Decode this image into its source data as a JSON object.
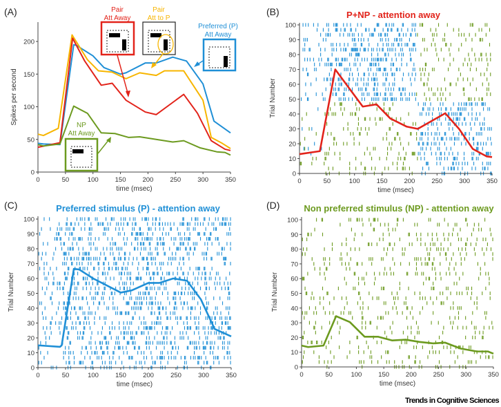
{
  "footer": "Trends in Cognitive Sciences",
  "colors": {
    "red": "#e2231a",
    "yellow": "#f7b500",
    "blue": "#1f8fd6",
    "green": "#6c9a1f",
    "black": "#222222"
  },
  "chart_data": [
    {
      "panel": "(A)",
      "type": "line",
      "xlabel": "time (msec)",
      "ylabel": "Spikes per second",
      "xlim": [
        0,
        350
      ],
      "ylim": [
        0,
        230
      ],
      "xticks": [
        "0",
        "50",
        "100",
        "150",
        "200",
        "250",
        "300",
        "350"
      ],
      "yticks": [
        "0",
        "50",
        "100",
        "150",
        "200"
      ],
      "annotations": {
        "pair_away": [
          "Pair",
          "Att Away"
        ],
        "pair_att": [
          "Pair",
          "Att to P"
        ],
        "pref_away": [
          "Preferred (P)",
          "Att Away"
        ],
        "np_away": [
          "NP",
          "Att Away"
        ]
      },
      "series": [
        {
          "name": "Preferred (P) Att Away",
          "color": "blue",
          "points": [
            [
              0,
              44
            ],
            [
              10,
              43
            ],
            [
              40,
              42
            ],
            [
              65,
              195
            ],
            [
              70,
              194
            ],
            [
              100,
              178
            ],
            [
              120,
              160
            ],
            [
              150,
              150
            ],
            [
              160,
              152
            ],
            [
              195,
              167
            ],
            [
              215,
              167
            ],
            [
              245,
              176
            ],
            [
              270,
              170
            ],
            [
              300,
              135
            ],
            [
              320,
              78
            ],
            [
              350,
              60
            ]
          ]
        },
        {
          "name": "Pair Att to P",
          "color": "yellow",
          "points": [
            [
              0,
              58
            ],
            [
              10,
              56
            ],
            [
              37,
              67
            ],
            [
              62,
              210
            ],
            [
              90,
              172
            ],
            [
              110,
              155
            ],
            [
              135,
              153
            ],
            [
              160,
              143
            ],
            [
              185,
              152
            ],
            [
              215,
              148
            ],
            [
              230,
              155
            ],
            [
              265,
              155
            ],
            [
              300,
              110
            ],
            [
              315,
              53
            ],
            [
              335,
              44
            ],
            [
              350,
              36
            ]
          ]
        },
        {
          "name": "Pair Att Away",
          "color": "red",
          "points": [
            [
              0,
              38
            ],
            [
              40,
              45
            ],
            [
              63,
              205
            ],
            [
              85,
              170
            ],
            [
              115,
              133
            ],
            [
              135,
              136
            ],
            [
              160,
              110
            ],
            [
              195,
              92
            ],
            [
              215,
              88
            ],
            [
              265,
              119
            ],
            [
              290,
              90
            ],
            [
              315,
              48
            ],
            [
              340,
              35
            ],
            [
              350,
              33
            ]
          ]
        },
        {
          "name": "NP Att Away",
          "color": "green",
          "points": [
            [
              0,
              42
            ],
            [
              10,
              40
            ],
            [
              40,
              43
            ],
            [
              65,
              101
            ],
            [
              90,
              90
            ],
            [
              115,
              60
            ],
            [
              140,
              59
            ],
            [
              165,
              53
            ],
            [
              185,
              54
            ],
            [
              215,
              50
            ],
            [
              245,
              46
            ],
            [
              265,
              48
            ],
            [
              295,
              37
            ],
            [
              325,
              31
            ],
            [
              340,
              30
            ],
            [
              350,
              26
            ]
          ]
        }
      ]
    },
    {
      "panel": "(B)",
      "type": "scatter",
      "title": "P+NP - attention away",
      "title_color": "red",
      "xlabel": "time (msec)",
      "ylabel": "Trial Number",
      "xlim": [
        0,
        350
      ],
      "ylim": [
        0,
        100
      ],
      "xticks": [
        "0",
        "50",
        "100",
        "150",
        "200",
        "250",
        "300",
        "350"
      ],
      "yticks": [
        "0",
        "10",
        "20",
        "30",
        "40",
        "50",
        "60",
        "70",
        "80",
        "90",
        "100"
      ],
      "raster": "mixed",
      "line": {
        "color": "red",
        "points": [
          [
            0,
            13
          ],
          [
            37,
            15
          ],
          [
            65,
            70
          ],
          [
            115,
            45
          ],
          [
            140,
            46.5
          ],
          [
            165,
            37
          ],
          [
            195,
            31.5
          ],
          [
            215,
            30
          ],
          [
            265,
            40.5
          ],
          [
            290,
            30
          ],
          [
            315,
            16.5
          ],
          [
            340,
            11.5
          ],
          [
            350,
            11
          ]
        ]
      }
    },
    {
      "panel": "(C)",
      "type": "scatter",
      "title": "Preferred stimulus (P) - attention away",
      "title_color": "blue",
      "xlabel": "time (msec)",
      "ylabel": "Trial Number",
      "xlim": [
        0,
        350
      ],
      "ylim": [
        0,
        100
      ],
      "xticks": [
        "0",
        "50",
        "100",
        "150",
        "200",
        "250",
        "300",
        "350"
      ],
      "yticks": [
        "0",
        "10",
        "20",
        "30",
        "40",
        "50",
        "60",
        "70",
        "80",
        "90",
        "100"
      ],
      "raster": "blue",
      "line": {
        "color": "blue",
        "points": [
          [
            0,
            15
          ],
          [
            40,
            14
          ],
          [
            43,
            15
          ],
          [
            65,
            66.5
          ],
          [
            75,
            66
          ],
          [
            100,
            60
          ],
          [
            150,
            50.5
          ],
          [
            170,
            52
          ],
          [
            200,
            57
          ],
          [
            220,
            57
          ],
          [
            245,
            60
          ],
          [
            270,
            58.5
          ],
          [
            295,
            46
          ],
          [
            320,
            26
          ],
          [
            350,
            21
          ]
        ]
      }
    },
    {
      "panel": "(D)",
      "type": "scatter",
      "title": "Non preferred stimulus (NP) - attention away",
      "title_color": "green",
      "xlabel": "time (msec)",
      "ylabel": "Trial Number",
      "xlim": [
        0,
        350
      ],
      "ylim": [
        0,
        100
      ],
      "xticks": [
        "0",
        "50",
        "100",
        "150",
        "200",
        "250",
        "300",
        "350"
      ],
      "yticks": [
        "0",
        "10",
        "20",
        "30",
        "40",
        "50",
        "60",
        "70",
        "80",
        "90",
        "100"
      ],
      "raster": "green",
      "line": {
        "color": "green",
        "points": [
          [
            0,
            14.5
          ],
          [
            12,
            13.5
          ],
          [
            40,
            14.5
          ],
          [
            63,
            34.5
          ],
          [
            88,
            30.5
          ],
          [
            115,
            20.5
          ],
          [
            140,
            20.5
          ],
          [
            165,
            18
          ],
          [
            190,
            18.5
          ],
          [
            215,
            17
          ],
          [
            240,
            16
          ],
          [
            262,
            16.5
          ],
          [
            290,
            12.5
          ],
          [
            320,
            10.5
          ],
          [
            340,
            10.5
          ],
          [
            350,
            9
          ]
        ]
      }
    }
  ]
}
